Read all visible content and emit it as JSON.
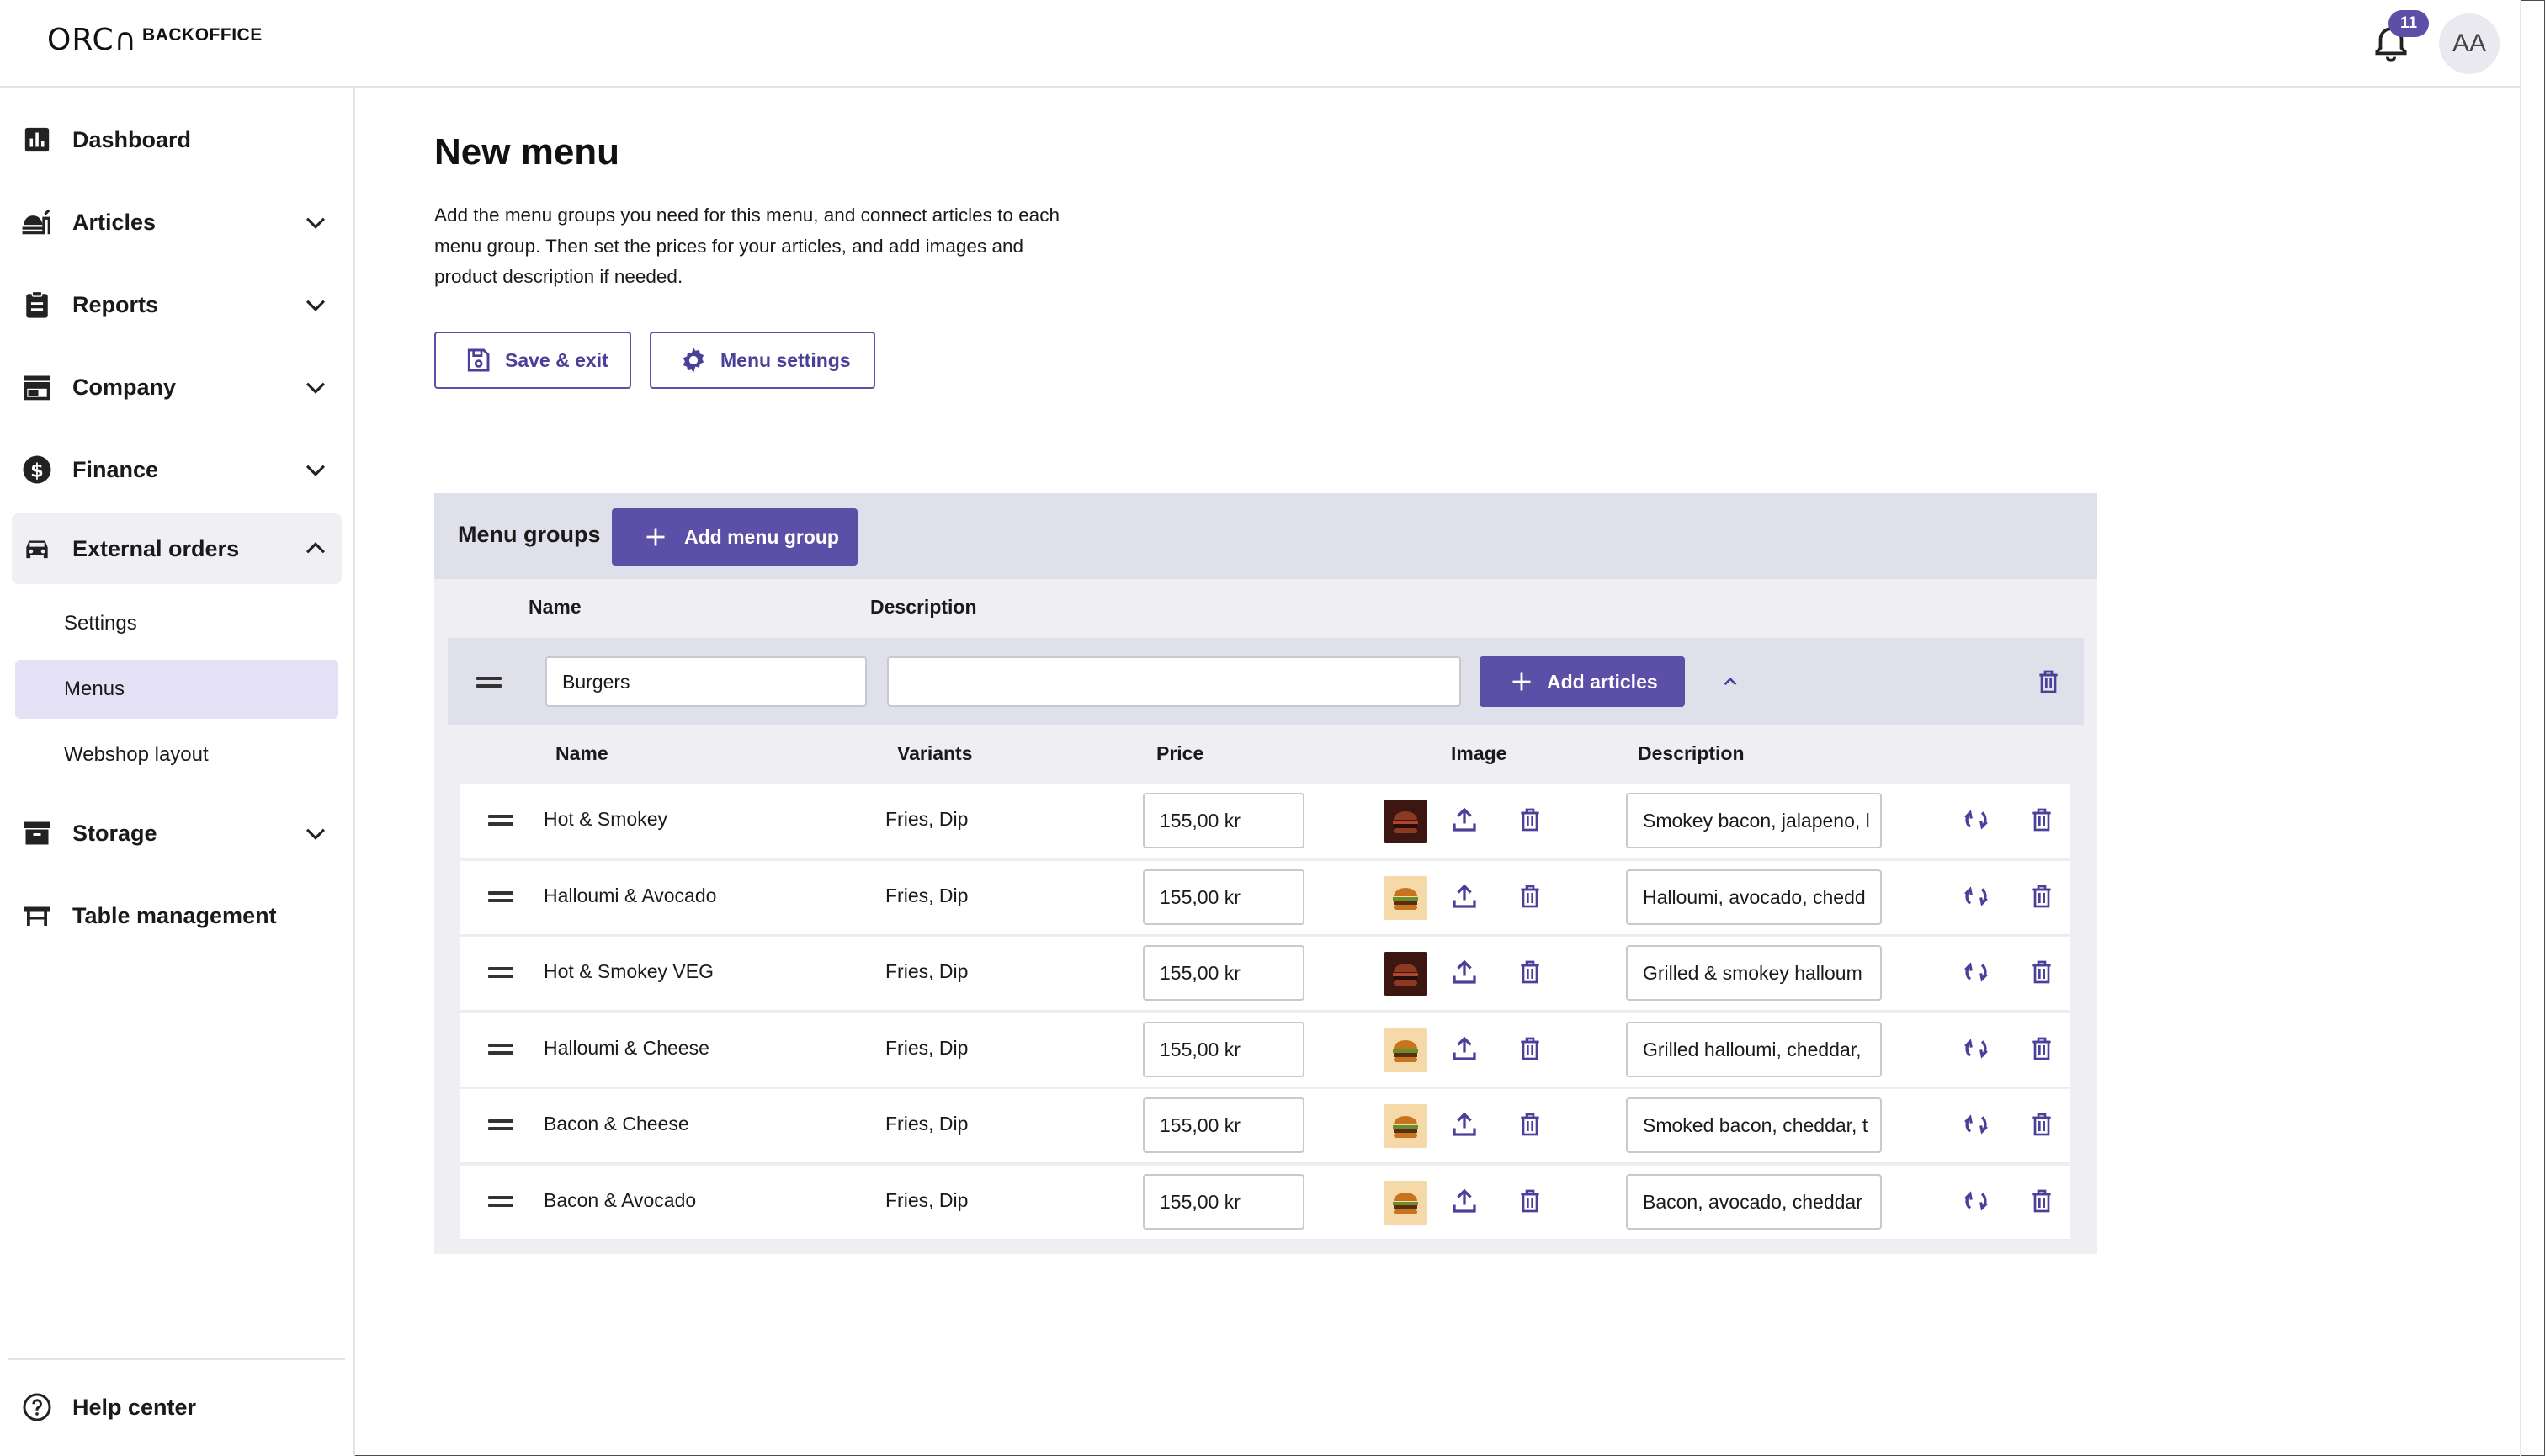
{
  "header": {
    "logo_mark": "ORC∩",
    "logo_word": "BACKOFFICE",
    "notification_count": "11",
    "avatar_initials": "AA"
  },
  "sidebar": {
    "items": [
      {
        "label": "Dashboard",
        "icon": "chart-icon"
      },
      {
        "label": "Articles",
        "icon": "articles-icon"
      },
      {
        "label": "Reports",
        "icon": "clipboard-icon"
      },
      {
        "label": "Company",
        "icon": "store-icon"
      },
      {
        "label": "Finance",
        "icon": "dollar-icon"
      },
      {
        "label": "External orders",
        "icon": "car-icon"
      },
      {
        "label": "Storage",
        "icon": "archive-icon"
      },
      {
        "label": "Table management",
        "icon": "table-icon"
      }
    ],
    "sub_items": [
      "Settings",
      "Menus",
      "Webshop layout"
    ],
    "active_sub": "Menus",
    "help": "Help center"
  },
  "main": {
    "title": "New menu",
    "intro": "Add the menu groups you need for this menu, and connect articles to each menu group. Then set the prices for your articles, and add images and product description if needed.",
    "save_label": "Save & exit",
    "settings_label": "Menu settings"
  },
  "menu_groups": {
    "label": "Menu groups",
    "add_group_label": "Add menu group",
    "col_name": "Name",
    "col_description": "Description",
    "group": {
      "name": "Burgers",
      "description": "",
      "add_articles_label": "Add articles"
    },
    "article_columns": {
      "name": "Name",
      "variants": "Variants",
      "price": "Price",
      "image": "Image",
      "description": "Description"
    },
    "articles": [
      {
        "name": "Hot & Smokey",
        "variants": "Fries, Dip",
        "price": "155,00 kr",
        "image": "dark",
        "description": "Smokey bacon, jalapeno, l"
      },
      {
        "name": "Halloumi & Avocado",
        "variants": "Fries, Dip",
        "price": "155,00 kr",
        "image": "light",
        "description": "Halloumi, avocado, chedd"
      },
      {
        "name": "Hot & Smokey VEG",
        "variants": "Fries, Dip",
        "price": "155,00 kr",
        "image": "dark",
        "description": "Grilled & smokey halloum"
      },
      {
        "name": "Halloumi & Cheese",
        "variants": "Fries, Dip",
        "price": "155,00 kr",
        "image": "light",
        "description": "Grilled halloumi, cheddar,"
      },
      {
        "name": "Bacon & Cheese",
        "variants": "Fries, Dip",
        "price": "155,00 kr",
        "image": "light",
        "description": "Smoked bacon, cheddar, t"
      },
      {
        "name": "Bacon & Avocado",
        "variants": "Fries, Dip",
        "price": "155,00 kr",
        "image": "light",
        "description": "Bacon, avocado,  cheddar"
      }
    ]
  },
  "colors": {
    "accent": "#5b4fa8",
    "panel": "#eeeef3",
    "panel_head": "#dfe0ea",
    "active_sub": "#e4e0f6"
  }
}
